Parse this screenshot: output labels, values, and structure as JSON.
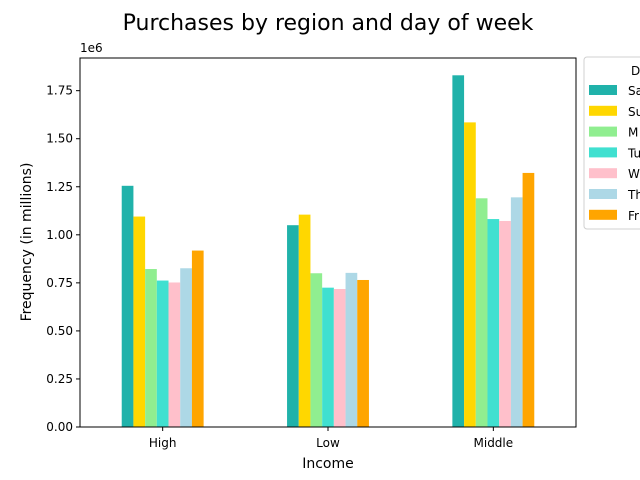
{
  "chart_data": {
    "type": "bar",
    "title": "Purchases by region and day of week",
    "xlabel": "Income",
    "ylabel": "Frequency (in millions)",
    "offset_label": "1e6",
    "categories": [
      "High",
      "Low",
      "Middle"
    ],
    "ylim": [
      0,
      1920000
    ],
    "yticks": [
      0,
      250000,
      500000,
      750000,
      1000000,
      1250000,
      1500000,
      1750000
    ],
    "ytick_labels": [
      "0.00",
      "0.25",
      "0.50",
      "0.75",
      "1.00",
      "1.25",
      "1.50",
      "1.75"
    ],
    "legend": {
      "title": "D",
      "placement": "outside-top-right"
    },
    "series": [
      {
        "name": "Sa",
        "color": "#20b2aa",
        "values": [
          1255000,
          1050000,
          1830000
        ]
      },
      {
        "name": "Su",
        "color": "#ffd700",
        "values": [
          1095000,
          1105000,
          1585000
        ]
      },
      {
        "name": "M",
        "color": "#90ee90",
        "values": [
          822000,
          800000,
          1190000
        ]
      },
      {
        "name": "Tu",
        "color": "#40e0d0",
        "values": [
          762000,
          725000,
          1082000
        ]
      },
      {
        "name": "W",
        "color": "#ffc0cb",
        "values": [
          752000,
          718000,
          1072000
        ]
      },
      {
        "name": "Th",
        "color": "#add8e6",
        "values": [
          826000,
          802000,
          1195000
        ]
      },
      {
        "name": "Fr",
        "color": "#ffa500",
        "values": [
          918000,
          765000,
          1322000
        ]
      }
    ]
  }
}
